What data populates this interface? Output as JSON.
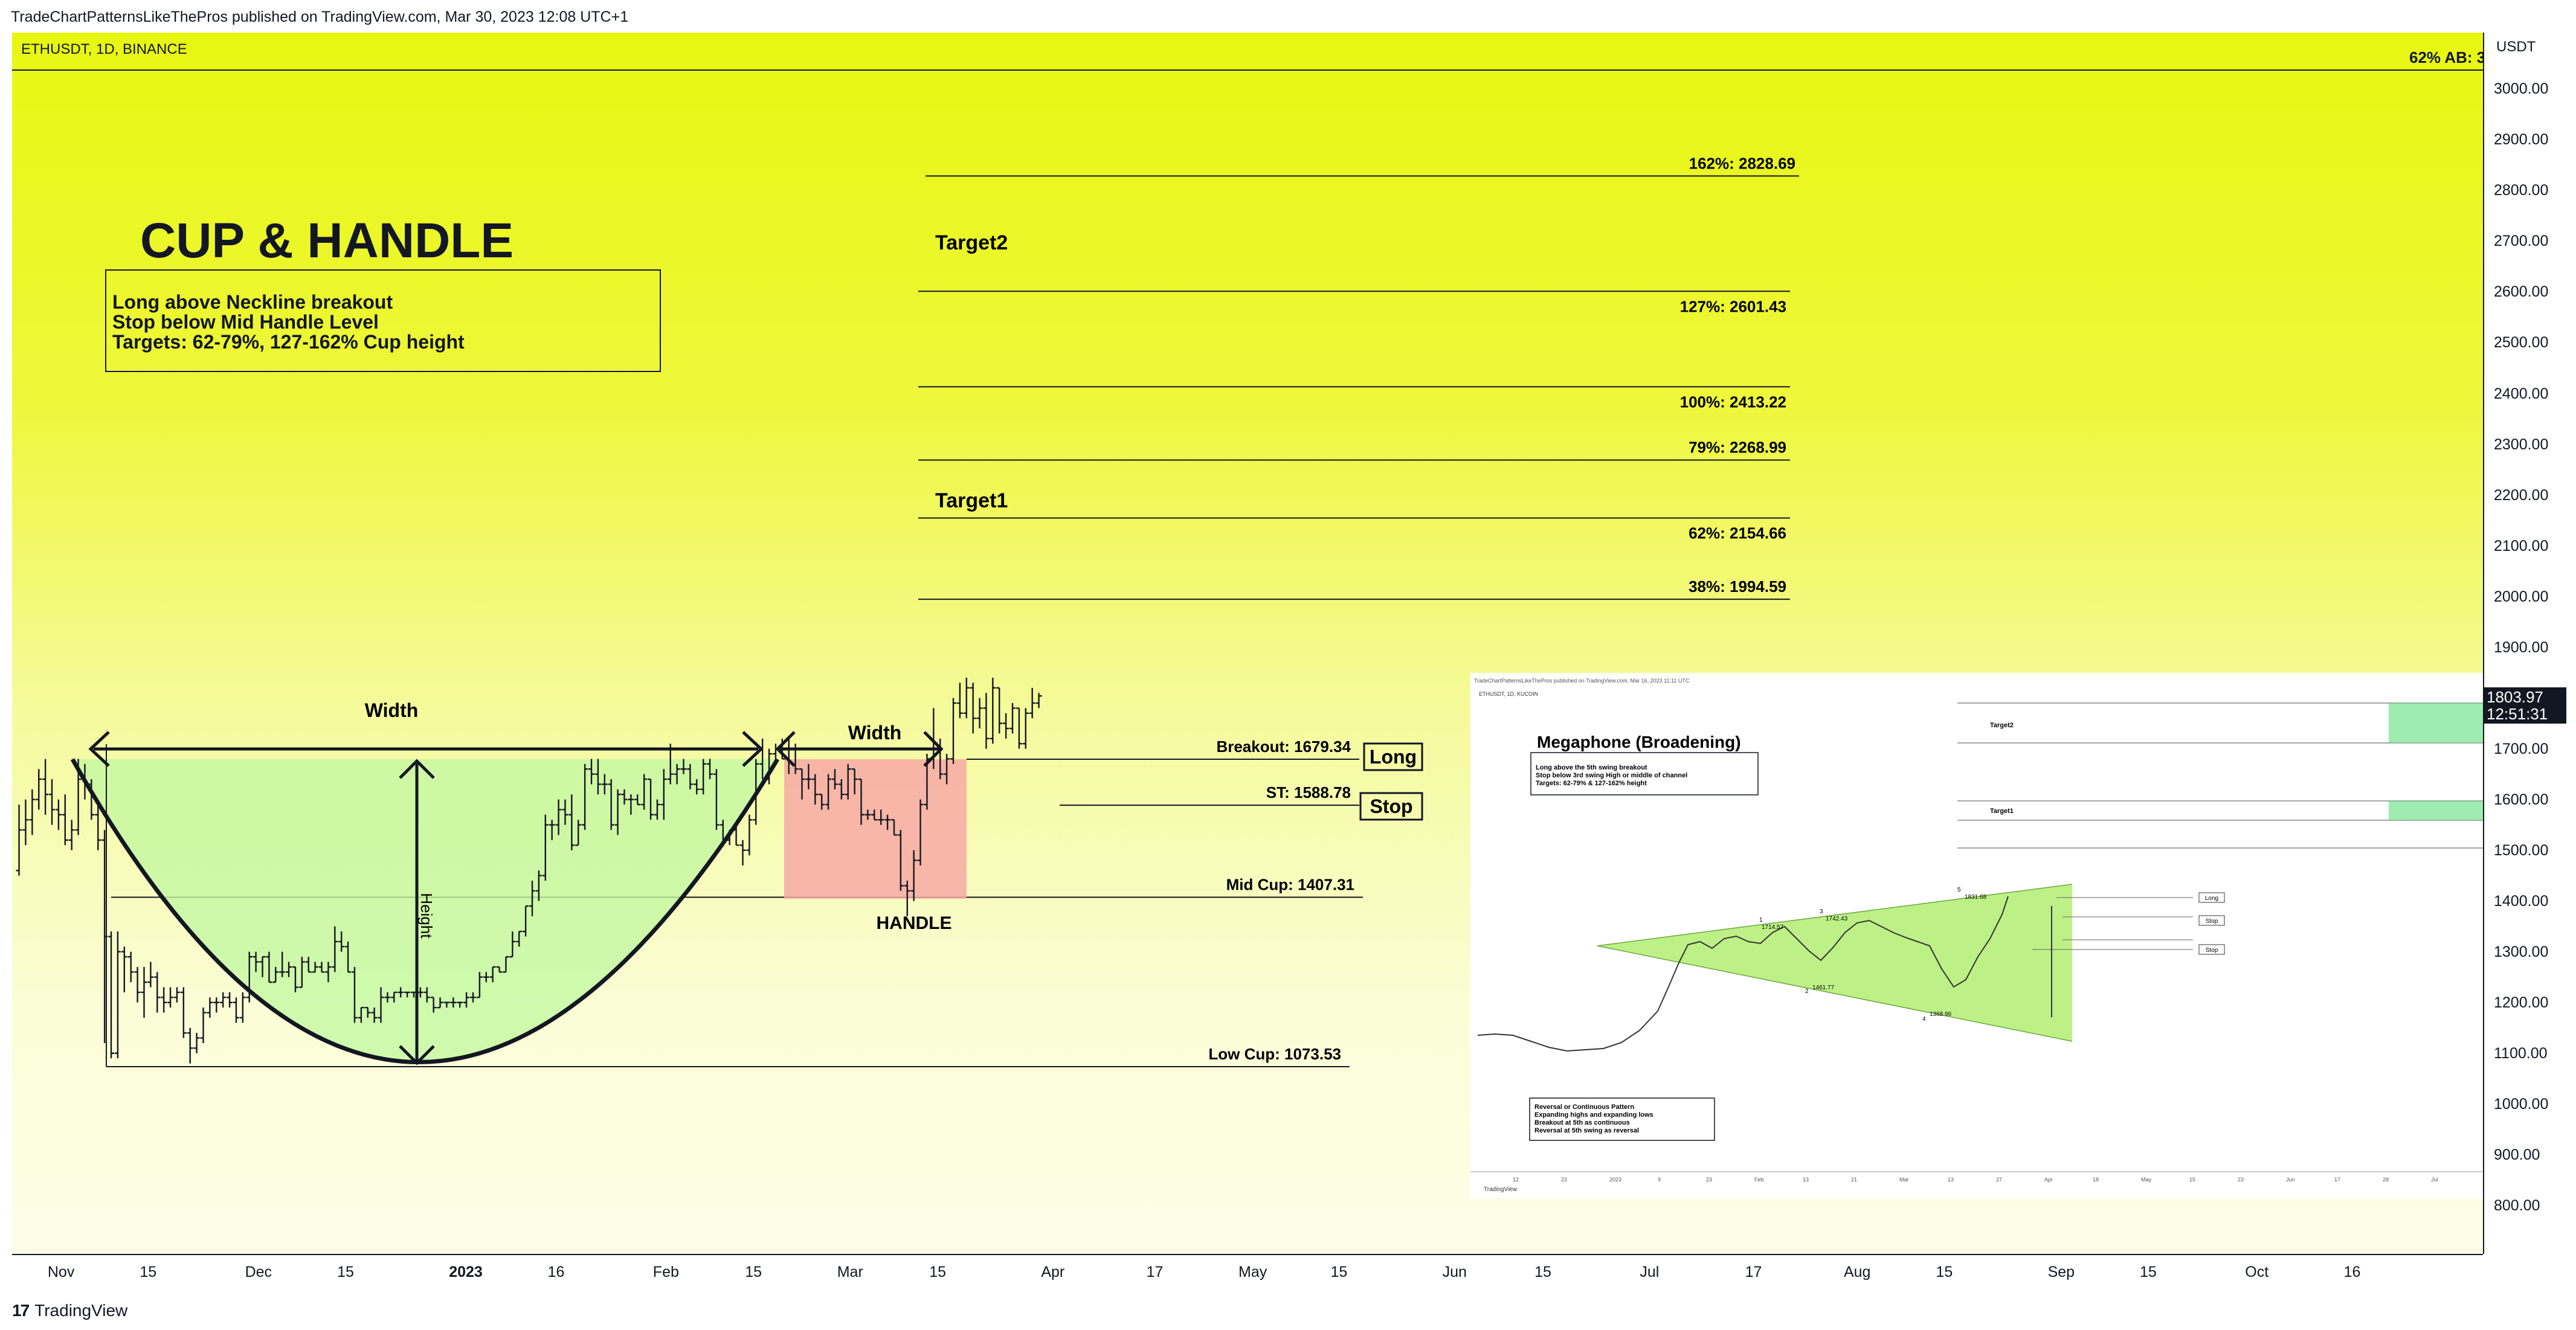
{
  "header": {
    "published": "TradeChartPatternsLikeThePros published on TradingView.com, Mar 30, 2023 12:08 UTC+1"
  },
  "symbol": "ETHUSDT, 1D, BINANCE",
  "corner_label": "62% AB: 3",
  "title": "CUP & HANDLE",
  "info": {
    "line1": "Long above Neckline breakout",
    "line2": "Stop below Mid Handle Level",
    "line3": "Targets: 62-79%, 127-162% Cup height"
  },
  "price_axis": {
    "currency": "USDT",
    "ticks": [
      "3000.00",
      "2900.00",
      "2800.00",
      "2700.00",
      "2600.00",
      "2500.00",
      "2400.00",
      "2300.00",
      "2200.00",
      "2100.00",
      "2000.00",
      "1900.00",
      "1700.00",
      "1600.00",
      "1500.00",
      "1400.00",
      "1300.00",
      "1200.00",
      "1100.00",
      "1000.00",
      "900.00",
      "800.00"
    ],
    "last_price": "1803.97",
    "countdown": "12:51:31"
  },
  "time_axis": {
    "ticks": [
      "Nov",
      "15",
      "Dec",
      "15",
      "2023",
      "16",
      "Feb",
      "15",
      "Mar",
      "15",
      "Apr",
      "17",
      "May",
      "15",
      "Jun",
      "15",
      "Jul",
      "17",
      "Aug",
      "15",
      "Sep",
      "15",
      "Oct",
      "16"
    ]
  },
  "levels": [
    {
      "label": "162%: 2828.69",
      "price": 2828.69
    },
    {
      "label": "127%: 2601.43",
      "price": 2601.43
    },
    {
      "label": "100%: 2413.22",
      "price": 2413.22
    },
    {
      "label": "79%: 2268.99",
      "price": 2268.99
    },
    {
      "label": "62%: 2154.66",
      "price": 2154.66
    },
    {
      "label": "38%: 1994.59",
      "price": 1994.59
    },
    {
      "label": "Breakout: 1679.34",
      "price": 1679.34
    },
    {
      "label": "ST: 1588.78",
      "price": 1588.78
    },
    {
      "label": "Mid Cup: 1407.31",
      "price": 1407.31
    },
    {
      "label": "Low Cup: 1073.53",
      "price": 1073.53
    }
  ],
  "annotations": {
    "target2": "Target2",
    "target1": "Target1",
    "width1": "Width",
    "width2": "Width",
    "height": "Height",
    "handle": "HANDLE",
    "long": "Long",
    "stop": "Stop"
  },
  "inset": {
    "header": "TradeChartPatternsLikeThePros published on TradingView.com, Mar 16, 2023 11:11 UTC",
    "symbol": "ETHUSDT, 1D, KUCOIN",
    "title": "Megaphone (Broadening)",
    "info1": "Long above the 5th swing breakout",
    "info2": "Stop below 3rd swing High or middle of channel",
    "info3": "Targets: 62-79% & 127-162% height",
    "target2": "Target2",
    "target1": "Target1",
    "long": "Long",
    "stop1": "Stop",
    "stop2": "Stop",
    "points": [
      "1",
      "2",
      "3",
      "4",
      "5"
    ],
    "price_labels": [
      "1714.57",
      "1461.77",
      "1742.43",
      "1368.96",
      "1831.68"
    ],
    "note1": "Reversal or Continuous Pattern",
    "note2": "Expanding highs and expanding lows",
    "note3": "Breakout at 5th as continuous",
    "note4": "Reversal at 5th swing as reversal",
    "months": [
      "12",
      "23",
      "2023",
      "9",
      "23",
      "Feb",
      "13",
      "21",
      "Mar",
      "13",
      "27",
      "Apr",
      "18",
      "May",
      "15",
      "23",
      "Jun",
      "17",
      "28",
      "Jul"
    ],
    "footer": "TradingView"
  },
  "chart_data": {
    "type": "bar",
    "title": "ETHUSDT, 1D, BINANCE",
    "pattern": "Cup & Handle",
    "ylim": [
      750,
      3080
    ],
    "x_range": [
      "2022-10-31",
      "2023-10-31"
    ],
    "candles_ohlc": [
      [
        "2022-10-26",
        1460,
        1590,
        1450,
        1540
      ],
      [
        "2022-10-27",
        1540,
        1600,
        1510,
        1560
      ],
      [
        "2022-10-28",
        1560,
        1620,
        1530,
        1600
      ],
      [
        "2022-10-29",
        1600,
        1660,
        1580,
        1640
      ],
      [
        "2022-10-30",
        1640,
        1680,
        1570,
        1610
      ],
      [
        "2022-10-31",
        1610,
        1640,
        1550,
        1580
      ],
      [
        "2022-11-01",
        1580,
        1600,
        1540,
        1570
      ],
      [
        "2022-11-02",
        1570,
        1610,
        1510,
        1520
      ],
      [
        "2022-11-03",
        1520,
        1560,
        1500,
        1540
      ],
      [
        "2022-11-04",
        1540,
        1680,
        1530,
        1640
      ],
      [
        "2022-11-05",
        1640,
        1670,
        1600,
        1630
      ],
      [
        "2022-11-06",
        1630,
        1640,
        1560,
        1570
      ],
      [
        "2022-11-07",
        1570,
        1590,
        1500,
        1520
      ],
      [
        "2022-11-08",
        1520,
        1540,
        1120,
        1330
      ],
      [
        "2022-11-09",
        1330,
        1340,
        1090,
        1100
      ],
      [
        "2022-11-10",
        1100,
        1340,
        1090,
        1300
      ],
      [
        "2022-11-11",
        1300,
        1310,
        1220,
        1290
      ],
      [
        "2022-11-12",
        1290,
        1300,
        1240,
        1260
      ],
      [
        "2022-11-13",
        1260,
        1270,
        1200,
        1220
      ],
      [
        "2022-11-14",
        1220,
        1270,
        1170,
        1240
      ],
      [
        "2022-11-15",
        1240,
        1280,
        1230,
        1250
      ],
      [
        "2022-11-16",
        1250,
        1260,
        1180,
        1210
      ],
      [
        "2022-11-17",
        1210,
        1230,
        1180,
        1200
      ],
      [
        "2022-11-18",
        1200,
        1230,
        1190,
        1210
      ],
      [
        "2022-11-19",
        1210,
        1230,
        1200,
        1220
      ],
      [
        "2022-11-20",
        1220,
        1230,
        1130,
        1140
      ],
      [
        "2022-11-21",
        1140,
        1150,
        1080,
        1110
      ],
      [
        "2022-11-22",
        1110,
        1140,
        1100,
        1130
      ],
      [
        "2022-11-23",
        1130,
        1190,
        1120,
        1180
      ],
      [
        "2022-11-24",
        1180,
        1210,
        1170,
        1200
      ],
      [
        "2022-11-25",
        1200,
        1210,
        1180,
        1200
      ],
      [
        "2022-11-26",
        1200,
        1220,
        1190,
        1210
      ],
      [
        "2022-11-27",
        1210,
        1220,
        1190,
        1200
      ],
      [
        "2022-11-28",
        1200,
        1210,
        1160,
        1170
      ],
      [
        "2022-11-29",
        1170,
        1220,
        1160,
        1210
      ],
      [
        "2022-11-30",
        1210,
        1300,
        1200,
        1290
      ],
      [
        "2022-12-01",
        1290,
        1300,
        1260,
        1280
      ],
      [
        "2022-12-02",
        1280,
        1290,
        1250,
        1290
      ],
      [
        "2022-12-03",
        1290,
        1300,
        1240,
        1240
      ],
      [
        "2022-12-04",
        1240,
        1270,
        1240,
        1260
      ],
      [
        "2022-12-05",
        1260,
        1300,
        1250,
        1260
      ],
      [
        "2022-12-06",
        1260,
        1280,
        1250,
        1270
      ],
      [
        "2022-12-07",
        1270,
        1270,
        1220,
        1230
      ],
      [
        "2022-12-08",
        1230,
        1290,
        1230,
        1280
      ],
      [
        "2022-12-09",
        1280,
        1290,
        1260,
        1260
      ],
      [
        "2022-12-10",
        1260,
        1280,
        1260,
        1270
      ],
      [
        "2022-12-11",
        1270,
        1280,
        1260,
        1260
      ],
      [
        "2022-12-12",
        1260,
        1280,
        1240,
        1270
      ],
      [
        "2022-12-13",
        1270,
        1350,
        1260,
        1320
      ],
      [
        "2022-12-14",
        1320,
        1340,
        1300,
        1310
      ],
      [
        "2022-12-15",
        1310,
        1320,
        1260,
        1260
      ],
      [
        "2022-12-16",
        1260,
        1270,
        1160,
        1170
      ],
      [
        "2022-12-17",
        1170,
        1190,
        1160,
        1190
      ],
      [
        "2022-12-18",
        1190,
        1190,
        1170,
        1180
      ],
      [
        "2022-12-19",
        1180,
        1190,
        1160,
        1170
      ],
      [
        "2022-12-20",
        1170,
        1230,
        1160,
        1210
      ],
      [
        "2022-12-21",
        1210,
        1220,
        1200,
        1210
      ],
      [
        "2022-12-22",
        1210,
        1220,
        1200,
        1220
      ],
      [
        "2022-12-23",
        1220,
        1230,
        1210,
        1220
      ],
      [
        "2022-12-24",
        1220,
        1220,
        1210,
        1220
      ],
      [
        "2022-12-25",
        1220,
        1220,
        1210,
        1220
      ],
      [
        "2022-12-26",
        1220,
        1230,
        1210,
        1220
      ],
      [
        "2022-12-27",
        1220,
        1230,
        1200,
        1210
      ],
      [
        "2022-12-28",
        1210,
        1210,
        1180,
        1190
      ],
      [
        "2022-12-29",
        1190,
        1210,
        1190,
        1200
      ],
      [
        "2022-12-30",
        1200,
        1200,
        1190,
        1200
      ],
      [
        "2022-12-31",
        1200,
        1210,
        1190,
        1200
      ],
      [
        "2023-01-01",
        1200,
        1200,
        1190,
        1200
      ],
      [
        "2023-01-02",
        1200,
        1220,
        1190,
        1210
      ],
      [
        "2023-01-03",
        1210,
        1220,
        1200,
        1210
      ],
      [
        "2023-01-04",
        1210,
        1260,
        1210,
        1250
      ],
      [
        "2023-01-05",
        1250,
        1260,
        1240,
        1250
      ],
      [
        "2023-01-06",
        1250,
        1270,
        1240,
        1270
      ],
      [
        "2023-01-07",
        1270,
        1270,
        1260,
        1260
      ],
      [
        "2023-01-08",
        1260,
        1290,
        1260,
        1290
      ],
      [
        "2023-01-09",
        1290,
        1340,
        1290,
        1320
      ],
      [
        "2023-01-10",
        1320,
        1340,
        1310,
        1340
      ],
      [
        "2023-01-11",
        1340,
        1390,
        1330,
        1390
      ],
      [
        "2023-01-12",
        1390,
        1440,
        1370,
        1420
      ],
      [
        "2023-01-13",
        1420,
        1460,
        1400,
        1450
      ],
      [
        "2023-01-14",
        1450,
        1570,
        1440,
        1550
      ],
      [
        "2023-01-15",
        1550,
        1560,
        1520,
        1550
      ],
      [
        "2023-01-16",
        1550,
        1600,
        1530,
        1580
      ],
      [
        "2023-01-17",
        1580,
        1600,
        1550,
        1570
      ],
      [
        "2023-01-18",
        1570,
        1610,
        1500,
        1510
      ],
      [
        "2023-01-19",
        1510,
        1560,
        1510,
        1550
      ],
      [
        "2023-01-20",
        1550,
        1670,
        1540,
        1660
      ],
      [
        "2023-01-21",
        1660,
        1680,
        1630,
        1650
      ],
      [
        "2023-01-22",
        1650,
        1680,
        1610,
        1630
      ],
      [
        "2023-01-23",
        1630,
        1650,
        1610,
        1630
      ],
      [
        "2023-01-24",
        1630,
        1640,
        1540,
        1550
      ],
      [
        "2023-01-25",
        1550,
        1620,
        1530,
        1610
      ],
      [
        "2023-01-26",
        1610,
        1620,
        1590,
        1600
      ],
      [
        "2023-01-27",
        1600,
        1610,
        1570,
        1600
      ],
      [
        "2023-01-28",
        1600,
        1610,
        1590,
        1590
      ],
      [
        "2023-01-29",
        1590,
        1650,
        1580,
        1640
      ],
      [
        "2023-01-30",
        1640,
        1640,
        1560,
        1570
      ],
      [
        "2023-01-31",
        1570,
        1600,
        1560,
        1590
      ],
      [
        "2023-02-01",
        1590,
        1660,
        1560,
        1640
      ],
      [
        "2023-02-02",
        1640,
        1710,
        1630,
        1650
      ],
      [
        "2023-02-03",
        1650,
        1670,
        1630,
        1660
      ],
      [
        "2023-02-04",
        1660,
        1680,
        1650,
        1660
      ],
      [
        "2023-02-05",
        1660,
        1670,
        1620,
        1630
      ],
      [
        "2023-02-06",
        1630,
        1640,
        1610,
        1620
      ],
      [
        "2023-02-07",
        1620,
        1680,
        1610,
        1670
      ],
      [
        "2023-02-08",
        1670,
        1680,
        1640,
        1650
      ],
      [
        "2023-02-09",
        1650,
        1660,
        1540,
        1550
      ],
      [
        "2023-02-10",
        1550,
        1560,
        1510,
        1520
      ],
      [
        "2023-02-11",
        1520,
        1540,
        1510,
        1540
      ],
      [
        "2023-02-12",
        1540,
        1550,
        1510,
        1510
      ],
      [
        "2023-02-13",
        1510,
        1520,
        1470,
        1500
      ],
      [
        "2023-02-14",
        1500,
        1570,
        1490,
        1560
      ],
      [
        "2023-02-15",
        1560,
        1680,
        1550,
        1670
      ],
      [
        "2023-02-16",
        1670,
        1720,
        1640,
        1640
      ],
      [
        "2023-02-17",
        1640,
        1700,
        1630,
        1690
      ],
      [
        "2023-02-18",
        1690,
        1710,
        1680,
        1700
      ],
      [
        "2023-02-19",
        1700,
        1720,
        1680,
        1680
      ],
      [
        "2023-02-20",
        1680,
        1720,
        1650,
        1700
      ],
      [
        "2023-02-21",
        1700,
        1710,
        1650,
        1660
      ],
      [
        "2023-02-22",
        1660,
        1660,
        1600,
        1640
      ],
      [
        "2023-02-23",
        1640,
        1670,
        1620,
        1640
      ],
      [
        "2023-02-24",
        1640,
        1650,
        1590,
        1610
      ],
      [
        "2023-02-25",
        1610,
        1610,
        1580,
        1590
      ],
      [
        "2023-02-26",
        1590,
        1650,
        1580,
        1640
      ],
      [
        "2023-02-27",
        1640,
        1660,
        1620,
        1630
      ],
      [
        "2023-02-28",
        1630,
        1640,
        1600,
        1610
      ],
      [
        "2023-03-01",
        1610,
        1670,
        1600,
        1660
      ],
      [
        "2023-03-02",
        1660,
        1660,
        1610,
        1640
      ],
      [
        "2023-03-03",
        1640,
        1640,
        1550,
        1570
      ],
      [
        "2023-03-04",
        1570,
        1580,
        1560,
        1570
      ],
      [
        "2023-03-05",
        1570,
        1580,
        1560,
        1560
      ],
      [
        "2023-03-06",
        1560,
        1580,
        1550,
        1560
      ],
      [
        "2023-03-07",
        1560,
        1570,
        1540,
        1560
      ],
      [
        "2023-03-08",
        1560,
        1560,
        1530,
        1530
      ],
      [
        "2023-03-09",
        1530,
        1540,
        1420,
        1430
      ],
      [
        "2023-03-10",
        1430,
        1440,
        1370,
        1420
      ],
      [
        "2023-03-11",
        1420,
        1500,
        1400,
        1480
      ],
      [
        "2023-03-12",
        1480,
        1600,
        1470,
        1590
      ],
      [
        "2023-03-13",
        1590,
        1690,
        1580,
        1680
      ],
      [
        "2023-03-14",
        1680,
        1780,
        1660,
        1700
      ],
      [
        "2023-03-15",
        1700,
        1720,
        1640,
        1650
      ],
      [
        "2023-03-16",
        1650,
        1690,
        1630,
        1680
      ],
      [
        "2023-03-17",
        1680,
        1800,
        1670,
        1790
      ],
      [
        "2023-03-18",
        1790,
        1830,
        1760,
        1770
      ],
      [
        "2023-03-19",
        1770,
        1840,
        1760,
        1820
      ],
      [
        "2023-03-20",
        1820,
        1830,
        1730,
        1760
      ],
      [
        "2023-03-21",
        1760,
        1800,
        1740,
        1780
      ],
      [
        "2023-03-22",
        1780,
        1810,
        1700,
        1720
      ],
      [
        "2023-03-23",
        1720,
        1840,
        1710,
        1820
      ],
      [
        "2023-03-24",
        1820,
        1820,
        1730,
        1750
      ],
      [
        "2023-03-25",
        1750,
        1770,
        1720,
        1740
      ],
      [
        "2023-03-26",
        1740,
        1790,
        1730,
        1780
      ],
      [
        "2023-03-27",
        1780,
        1780,
        1700,
        1710
      ],
      [
        "2023-03-28",
        1710,
        1780,
        1700,
        1770
      ],
      [
        "2023-03-29",
        1770,
        1820,
        1760,
        1790
      ],
      [
        "2023-03-30",
        1790,
        1810,
        1780,
        1804
      ]
    ],
    "levels": [
      2828.69,
      2601.43,
      2413.22,
      2268.99,
      2154.66,
      1994.59,
      1679.34,
      1588.78,
      1407.31,
      1073.53
    ]
  }
}
